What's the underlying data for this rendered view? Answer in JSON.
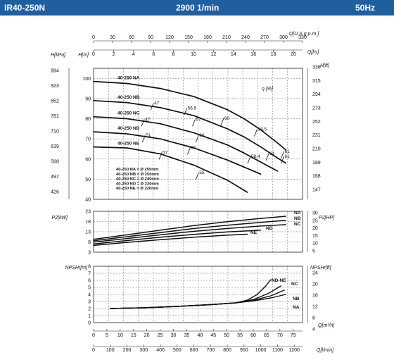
{
  "header": {
    "model": "IR40-250N",
    "speed": "2900 1/min",
    "frequency": "50Hz"
  },
  "chart_data": [
    {
      "type": "line",
      "panel": "head",
      "ylabel_left_kpa": "H[kPa]",
      "ylabel_left_m": "H[m]",
      "ylabel_right_ft": "H[ft]",
      "top_axis_label": "Q[U.S.g.p.m.]",
      "top_axis_ticks": [
        "0",
        "30",
        "60",
        "90",
        "120",
        "150",
        "180",
        "210",
        "240",
        "270",
        "300",
        "330"
      ],
      "top_axis_label2": "Q[l/s]",
      "top_axis_ticks2": [
        "0",
        "2",
        "4",
        "6",
        "8",
        "10",
        "12",
        "14",
        "16",
        "18",
        "20"
      ],
      "ylim": [
        40,
        105
      ],
      "y_ticks_m": [
        "100",
        "90",
        "80",
        "70",
        "60",
        "50",
        "40"
      ],
      "y_ticks_kpa": [
        "994",
        "923",
        "852",
        "781",
        "710",
        "639",
        "568",
        "497",
        "426"
      ],
      "y_ticks_ft": [
        "336",
        "315",
        "294",
        "273",
        "252",
        "231",
        "210",
        "189",
        "168",
        "147"
      ],
      "efficiency_label": "η [%]",
      "series": [
        {
          "name": "40-250 NA",
          "x": [
            0,
            200,
            400,
            600,
            800,
            900,
            1000,
            1100,
            1150
          ],
          "y": [
            98.5,
            97.5,
            95,
            91,
            84.5,
            80,
            74.5,
            68,
            64.5
          ]
        },
        {
          "name": "40-250 NB",
          "x": [
            0,
            200,
            400,
            600,
            800,
            900,
            1000,
            1100,
            1150
          ],
          "y": [
            89,
            88,
            85.5,
            81.5,
            75,
            71,
            66,
            60.5,
            58
          ]
        },
        {
          "name": "40-250 NC",
          "x": [
            0,
            200,
            400,
            600,
            800,
            900,
            1000,
            1100
          ],
          "y": [
            81,
            80,
            77.5,
            73,
            67,
            63,
            58.5,
            54
          ]
        },
        {
          "name": "40-250 ND",
          "x": [
            0,
            200,
            400,
            600,
            800,
            900,
            1000
          ],
          "y": [
            73.5,
            72.5,
            70,
            65.5,
            59.5,
            56,
            52.5
          ]
        },
        {
          "name": "40-250 NE",
          "x": [
            0,
            200,
            400,
            600,
            800,
            920
          ],
          "y": [
            66,
            65.5,
            62.5,
            57,
            49.5,
            43.5
          ]
        }
      ],
      "efficiency_labels": [
        {
          "text": "47",
          "x": 350,
          "y": 86
        },
        {
          "text": "56,5",
          "x": 550,
          "y": 83.5
        },
        {
          "text": "60",
          "x": 770,
          "y": 78.5
        },
        {
          "text": "58,5",
          "x": 970,
          "y": 73
        },
        {
          "text": "47",
          "x": 295,
          "y": 78
        },
        {
          "text": "57",
          "x": 600,
          "y": 78
        },
        {
          "text": "61",
          "x": 1130,
          "y": 62
        },
        {
          "text": "51",
          "x": 300,
          "y": 70
        },
        {
          "text": "60",
          "x": 620,
          "y": 70
        },
        {
          "text": "61",
          "x": 1040,
          "y": 61
        },
        {
          "text": "60",
          "x": 570,
          "y": 64
        },
        {
          "text": "58,4",
          "x": 930,
          "y": 59.5
        },
        {
          "text": "57",
          "x": 400,
          "y": 61.5
        },
        {
          "text": "55",
          "x": 620,
          "y": 51.5
        },
        {
          "text": "61",
          "x": 1130,
          "y": 59.5
        }
      ],
      "diameters": [
        "40-250 NA = Ø 259mm",
        "40-250 NB = Ø 250mm",
        "40-250 NC = Ø 240mm",
        "40-250 ND = Ø 230mm",
        "40-250 NE = Ø 220mm"
      ]
    },
    {
      "type": "line",
      "panel": "power",
      "ylabel_left": "P2[kW]",
      "ylabel_right": "P2[HP]",
      "ylim": [
        3,
        23
      ],
      "y_ticks_left": [
        "23",
        "18",
        "13",
        "8",
        "3"
      ],
      "y_ticks_right": [
        "30",
        "25",
        "20",
        "15",
        "10",
        "5"
      ],
      "series": [
        {
          "name": "NA",
          "x": [
            0,
            200,
            400,
            600,
            800,
            1000,
            1150
          ],
          "y": [
            9.3,
            11.5,
            13.8,
            16.0,
            17.9,
            19.5,
            20.6
          ]
        },
        {
          "name": "NB",
          "x": [
            0,
            200,
            400,
            600,
            800,
            1000,
            1150
          ],
          "y": [
            8.6,
            10.6,
            12.6,
            14.6,
            16.2,
            17.6,
            18.6
          ]
        },
        {
          "name": "NC",
          "x": [
            0,
            200,
            400,
            600,
            800,
            1000,
            1150
          ],
          "y": [
            7.9,
            9.7,
            11.5,
            13.2,
            14.6,
            15.8,
            16.5
          ]
        },
        {
          "name": "ND",
          "x": [
            0,
            200,
            400,
            600,
            800,
            1000
          ],
          "y": [
            7.0,
            8.7,
            10.3,
            11.7,
            12.9,
            13.8
          ]
        },
        {
          "name": "NE",
          "x": [
            0,
            200,
            400,
            600,
            800,
            920
          ],
          "y": [
            6.3,
            7.8,
            9.1,
            10.3,
            11.3,
            11.8
          ]
        }
      ]
    },
    {
      "type": "line",
      "panel": "npsh",
      "ylabel_left": "NPSHr[m]",
      "ylabel_right": "NPSHr[ft]",
      "xlabel_m3h": "Q[m³/h]",
      "xlabel_lmin": "Q[l/min]",
      "ylim": [
        0,
        8
      ],
      "y_ticks_left": [
        "8",
        "7",
        "6",
        "5",
        "4",
        "3",
        "2",
        "1",
        "0"
      ],
      "y_ticks_right": [
        "24",
        "20",
        "16",
        "12",
        "8",
        "4"
      ],
      "x_ticks_m3h": [
        "0",
        "5",
        "10",
        "15",
        "20",
        "25",
        "30",
        "35",
        "40",
        "45",
        "50",
        "55",
        "60",
        "65",
        "70",
        "75"
      ],
      "x_ticks_lmin": [
        "0",
        "100",
        "200",
        "300",
        "400",
        "500",
        "600",
        "700",
        "800",
        "900",
        "1000",
        "1100",
        "1200"
      ],
      "series": [
        {
          "name": "ND-NE",
          "x": [
            100,
            300,
            500,
            700,
            850,
            920,
            980,
            1030,
            1060
          ],
          "y": [
            2.0,
            2.1,
            2.3,
            2.55,
            2.8,
            3.2,
            4.0,
            5.2,
            6.1
          ]
        },
        {
          "name": "NC",
          "x": [
            100,
            300,
            500,
            700,
            850,
            960,
            1050,
            1120
          ],
          "y": [
            2.0,
            2.1,
            2.3,
            2.55,
            2.8,
            3.3,
            4.2,
            5.2
          ]
        },
        {
          "name": "NB",
          "x": [
            100,
            300,
            500,
            700,
            850,
            960,
            1060,
            1140
          ],
          "y": [
            2.0,
            2.1,
            2.3,
            2.55,
            2.8,
            3.2,
            3.8,
            4.6
          ]
        },
        {
          "name": "NA",
          "x": [
            100,
            300,
            500,
            700,
            850,
            960,
            1060,
            1150
          ],
          "y": [
            2.0,
            2.1,
            2.3,
            2.55,
            2.8,
            3.1,
            3.5,
            4.0
          ]
        }
      ]
    }
  ]
}
